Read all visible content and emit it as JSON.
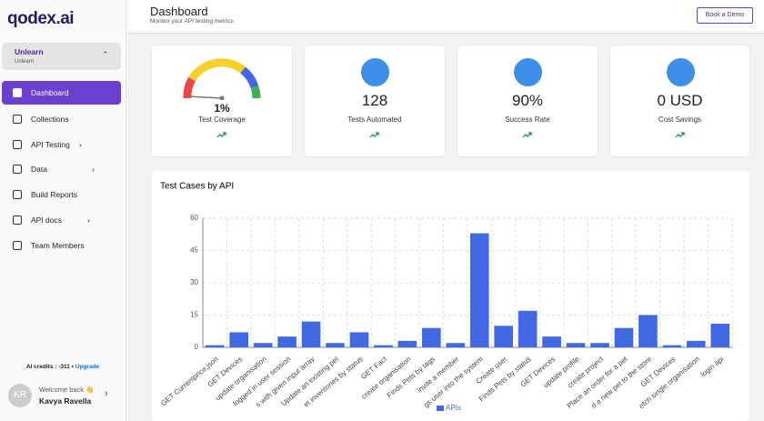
{
  "sidebar": {
    "logo": "qodex.ai",
    "workspace": {
      "name": "Unlearn",
      "sub": "Unlearn"
    },
    "nav": [
      "Dashboard",
      "Collections",
      "API Testing",
      "Data",
      "Build Reports",
      "API docs",
      "Team Members"
    ],
    "credits": "AI credits : -311 •",
    "upgrade": "Upgrade",
    "user": {
      "initials": "KR",
      "greeting": "Welcome back 👋",
      "name": "Kavya Ravella"
    }
  },
  "header": {
    "title": "Dashboard",
    "subtitle": "Monitor your API testing metrics",
    "button": "Book a Demo"
  },
  "cards": [
    {
      "value": "1%",
      "label": "Test Coverage"
    },
    {
      "value": "128",
      "label": "Tests Automated"
    },
    {
      "value": "90%",
      "label": "Success Rate"
    },
    {
      "value": "0 USD",
      "label": "Cost Savings"
    }
  ],
  "chart_data": {
    "type": "bar",
    "title": "Test Cases by API",
    "categories": [
      "GET Currentprice.json",
      "GET Devices",
      "update organisation",
      "logged in user session",
      "s with given input array",
      "Update an existing pet",
      "et inventories by status",
      "GET Fact",
      "create organisation",
      "Finds Pets by tags",
      "invite a member",
      "gs user into the system",
      "Create user",
      "Finds Pets by status",
      "GET Devices",
      "update profile",
      "create project",
      "Place an order for a pet",
      "d a new pet to the store",
      "GET Devices",
      "etch single organisation",
      "login api"
    ],
    "series": [
      {
        "name": "APIs",
        "color": "#4169e1",
        "values": [
          1,
          7,
          2,
          5,
          12,
          2,
          7,
          1,
          3,
          9,
          2,
          53,
          10,
          17,
          5,
          2,
          2,
          9,
          15,
          1,
          3,
          11
        ]
      }
    ],
    "ylim": [
      0,
      60
    ],
    "yticks": [
      0,
      15,
      30,
      45,
      60
    ],
    "grid": true,
    "legend": "bottom"
  }
}
